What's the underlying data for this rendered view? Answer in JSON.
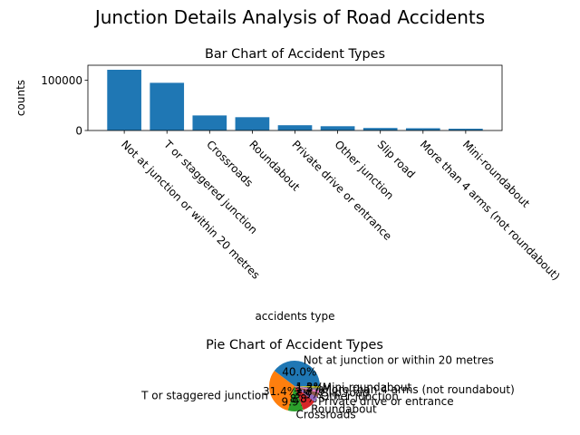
{
  "figure": {
    "suptitle": "Junction Details Analysis of Road Accidents"
  },
  "chart_data": [
    {
      "type": "bar",
      "title": "Bar Chart of Accident Types",
      "xlabel": "accidents type",
      "ylabel": "counts",
      "ylim": [
        0,
        130000
      ],
      "yticks": [
        0,
        100000
      ],
      "grid": false,
      "color": "#1f77b4",
      "categories": [
        "Not at junction or within 20 metres",
        "T or staggered junction",
        "Crossroads",
        "Roundabout",
        "Private drive or entrance",
        "Other junction",
        "Slip road",
        "More than 4 arms (not roundabout)",
        "Mini-roundabout"
      ],
      "values": [
        121000,
        95000,
        30000,
        26500,
        10500,
        8500,
        5000,
        4500,
        3500
      ]
    },
    {
      "type": "pie",
      "title": "Pie Chart of Accident Types",
      "labels": [
        "Not at junction or within 20 metres",
        "T or staggered junction",
        "Crossroads",
        "Roundabout",
        "Private drive or entrance",
        "Other junction",
        "Slip road",
        "More than 4 arms (not roundabout)",
        "Mini-roundabout"
      ],
      "values": [
        40.0,
        31.4,
        9.9,
        8.8,
        3.5,
        2.8,
        1.7,
        1.5,
        1.2
      ],
      "autopct": [
        "40.0%",
        "31.4%",
        "9.9%",
        "8.8%",
        "3.5%",
        "2.8%",
        "1.7%",
        "1.5%",
        "1.2%"
      ],
      "colors": [
        "#1f77b4",
        "#ff7f0e",
        "#2ca02c",
        "#d62728",
        "#9467bd",
        "#8c564b",
        "#e377c2",
        "#7f7f7f",
        "#bcbd22"
      ]
    }
  ]
}
